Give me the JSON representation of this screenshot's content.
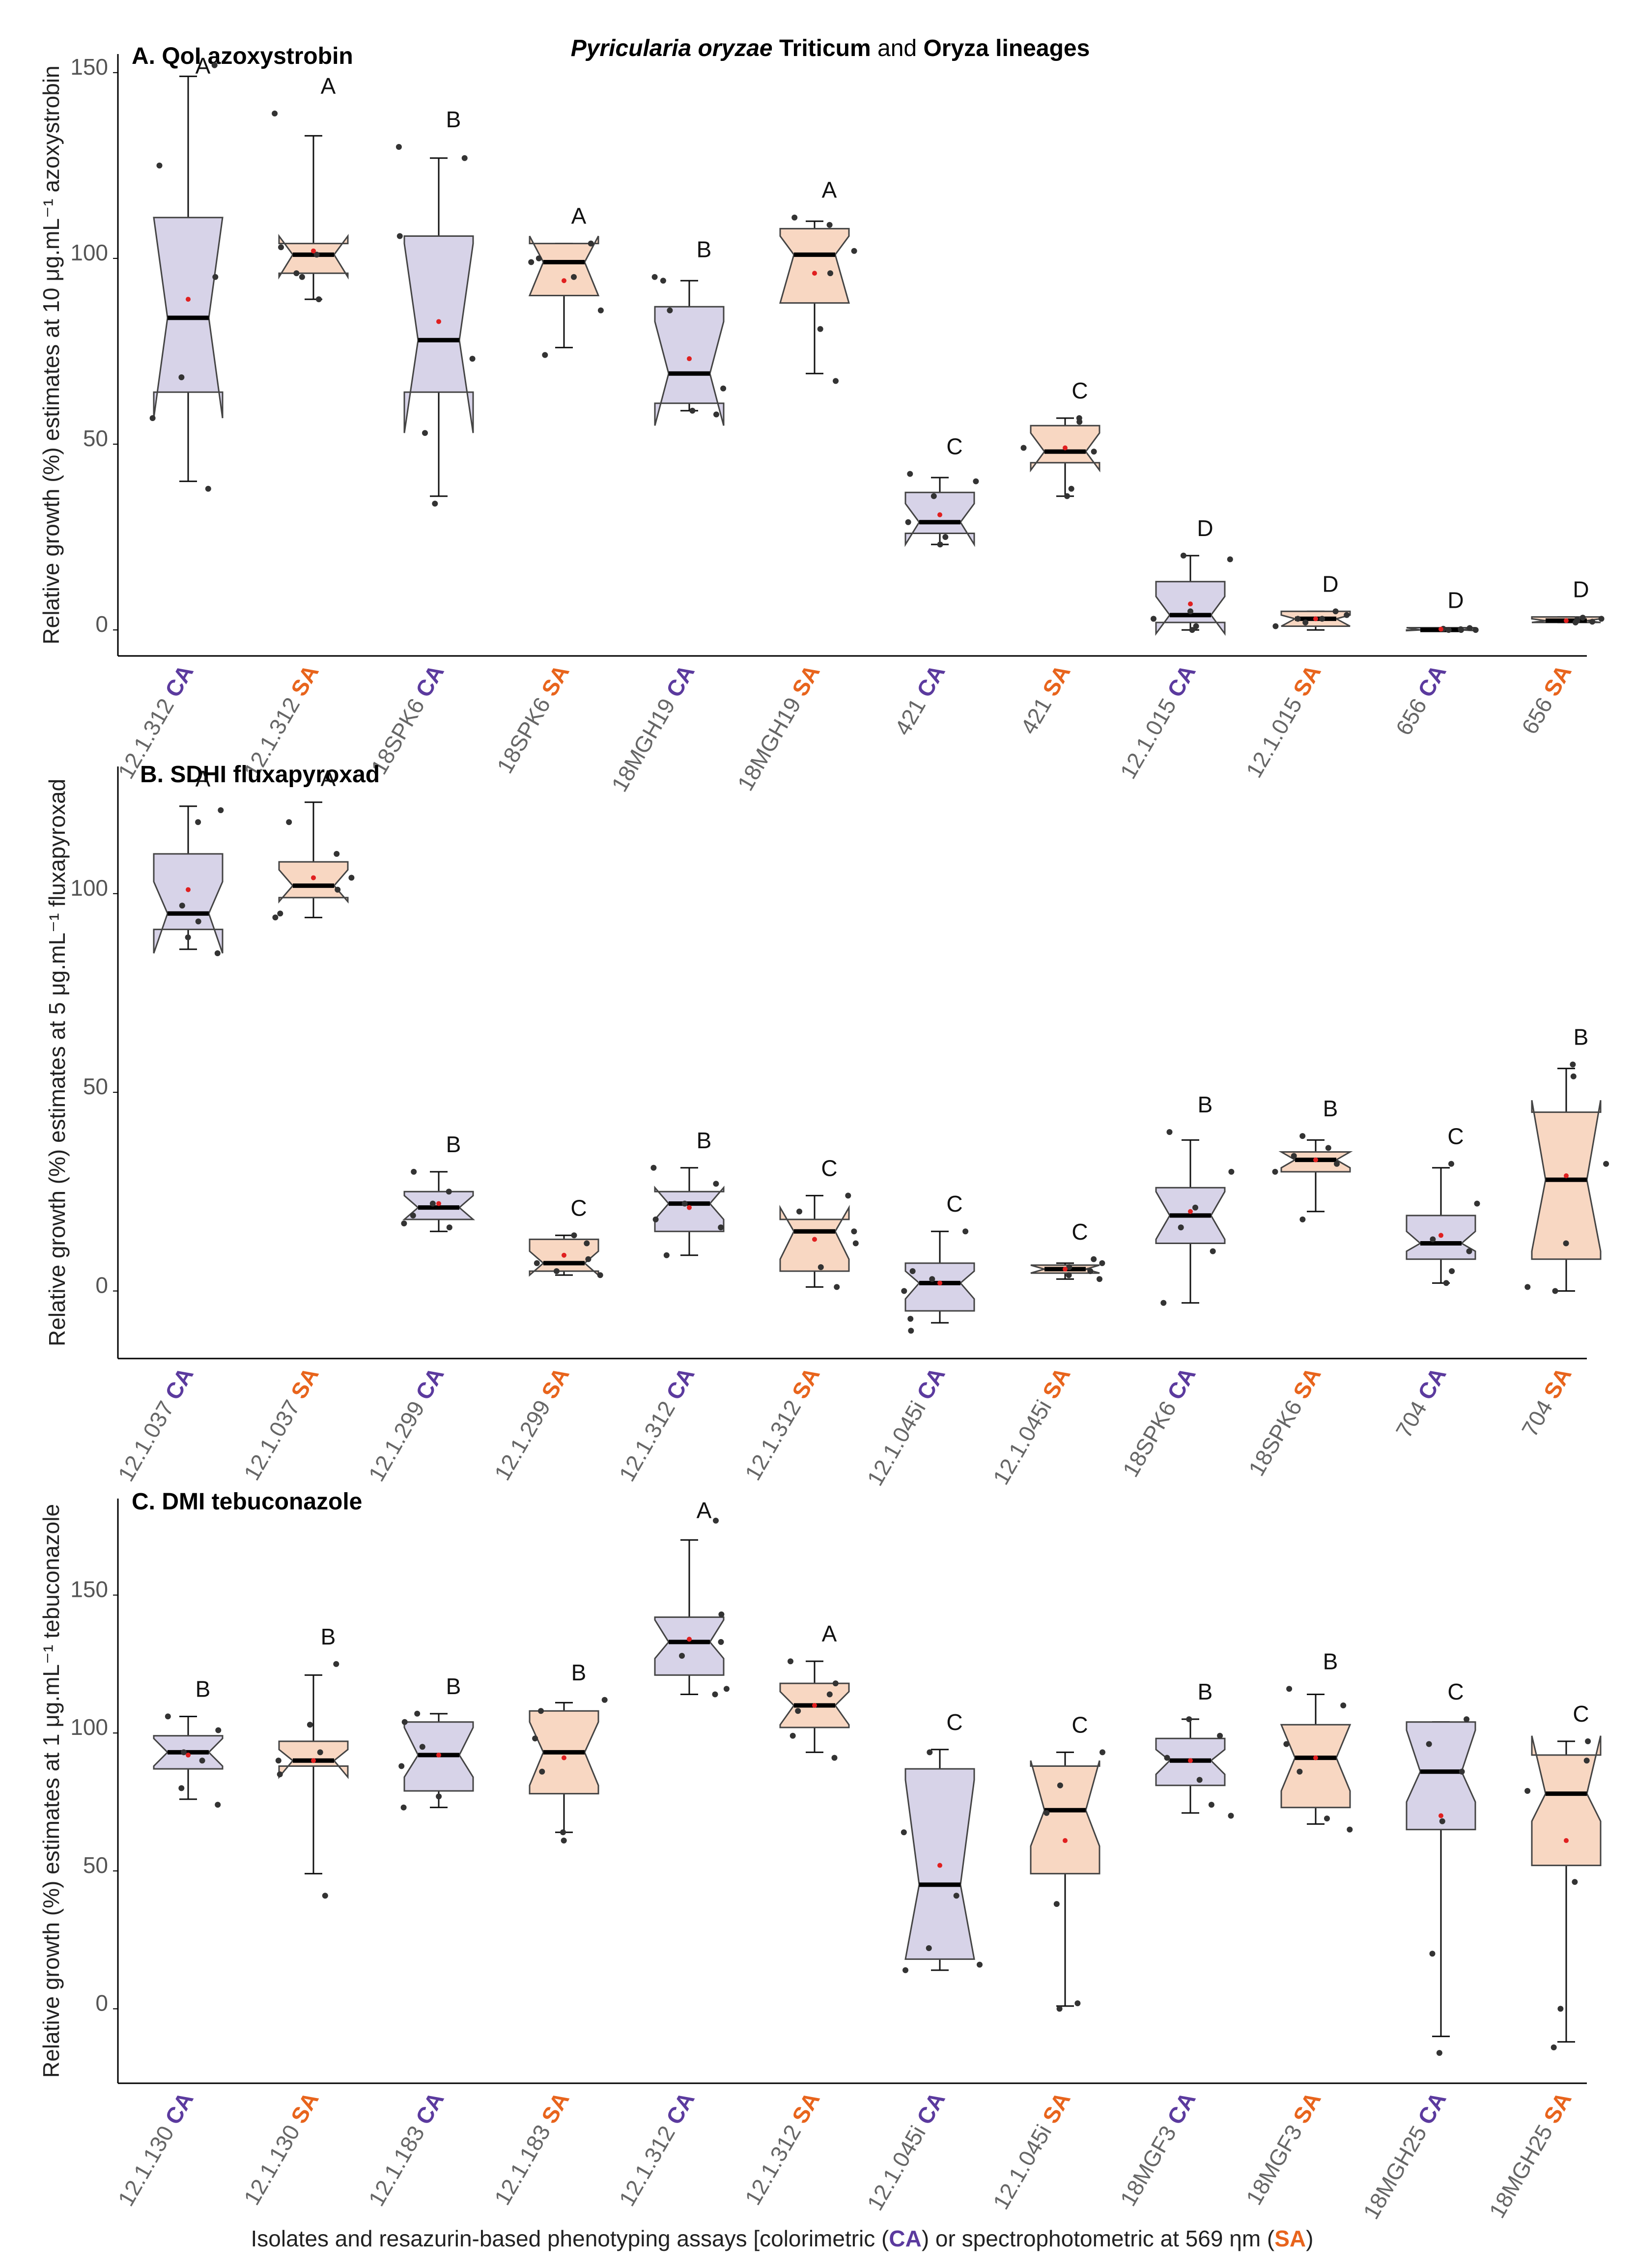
{
  "figure_title": {
    "part1": "Pyricularia oryzae",
    "part2": " Triticum",
    "part3": " and ",
    "part4": "Oryza",
    "part5": " lineages"
  },
  "colors": {
    "CA_fill": "#d7d3e8",
    "CA_text": "#5b3a9e",
    "SA_fill": "#f8d7c2",
    "SA_text": "#e8641c",
    "box_stroke": "#444444",
    "median": "#000000",
    "mean": "#e02020",
    "point": "#333333"
  },
  "footer": {
    "p1": "Isolates and resazurin-based phenotyping assays [colorimetric (",
    "ca": "CA",
    "p2": ") or spectrophotometric at 569 ηm (",
    "sa": "SA",
    "p3": ")"
  },
  "chart_data": [
    {
      "type": "boxplot",
      "title": "A. QoI azoxystrobin",
      "ylabel": "Relative growth (%) estimates at 10 μg.mL⁻¹ azoxystrobin",
      "ylim": [
        -7,
        155
      ],
      "yticks": [
        0,
        50,
        100,
        150
      ],
      "groups": [
        {
          "isolate": "12.1.312",
          "assay": "CA",
          "letter": "A",
          "q1": 64,
          "median": 84,
          "q3": 111,
          "wlo": 40,
          "whi": 149,
          "mean": 89,
          "nlo": 57,
          "nhi": 111,
          "points": [
            38,
            57,
            68,
            95,
            125,
            152
          ]
        },
        {
          "isolate": "12.1.312",
          "assay": "SA",
          "letter": "A",
          "q1": 96,
          "median": 101,
          "q3": 104,
          "wlo": 89,
          "whi": 133,
          "mean": 102,
          "nlo": 95,
          "nhi": 106,
          "points": [
            89,
            95,
            96,
            101,
            103,
            139
          ]
        },
        {
          "isolate": "18SPK6",
          "assay": "CA",
          "letter": "B",
          "q1": 64,
          "median": 78,
          "q3": 106,
          "wlo": 36,
          "whi": 127,
          "mean": 83,
          "nlo": 53,
          "nhi": 104,
          "points": [
            34,
            53,
            73,
            106,
            127,
            130
          ]
        },
        {
          "isolate": "18SPK6",
          "assay": "SA",
          "letter": "A",
          "q1": 90,
          "median": 99,
          "q3": 104,
          "wlo": 76,
          "whi": 104,
          "mean": 94,
          "nlo": 90,
          "nhi": 106,
          "points": [
            74,
            86,
            95,
            99,
            100,
            104
          ]
        },
        {
          "isolate": "18MGH19",
          "assay": "CA",
          "letter": "B",
          "q1": 61,
          "median": 69,
          "q3": 87,
          "wlo": 59,
          "whi": 94,
          "mean": 73,
          "nlo": 55,
          "nhi": 83,
          "points": [
            58,
            59,
            65,
            86,
            94,
            95
          ]
        },
        {
          "isolate": "18MGH19",
          "assay": "SA",
          "letter": "A",
          "q1": 88,
          "median": 101,
          "q3": 108,
          "wlo": 69,
          "whi": 110,
          "mean": 96,
          "nlo": 88,
          "nhi": 106,
          "points": [
            67,
            81,
            96,
            102,
            109,
            111
          ]
        },
        {
          "isolate": "421",
          "assay": "CA",
          "letter": "C",
          "q1": 26,
          "median": 29,
          "q3": 37,
          "wlo": 23,
          "whi": 41,
          "mean": 31,
          "nlo": 23,
          "nhi": 34,
          "points": [
            23,
            25,
            29,
            36,
            40,
            42
          ]
        },
        {
          "isolate": "421",
          "assay": "SA",
          "letter": "C",
          "q1": 45,
          "median": 48,
          "q3": 55,
          "wlo": 36,
          "whi": 57,
          "mean": 49,
          "nlo": 43,
          "nhi": 53,
          "points": [
            36,
            38,
            48,
            49,
            56,
            57
          ]
        },
        {
          "isolate": "12.1.015",
          "assay": "CA",
          "letter": "D",
          "q1": 2,
          "median": 4,
          "q3": 13,
          "wlo": 0,
          "whi": 20,
          "mean": 7,
          "nlo": -1,
          "nhi": 9,
          "points": [
            0,
            1,
            3,
            5,
            19,
            20
          ]
        },
        {
          "isolate": "12.1.015",
          "assay": "SA",
          "letter": "D",
          "q1": 1,
          "median": 3,
          "q3": 5,
          "wlo": 0,
          "whi": 5,
          "mean": 3,
          "nlo": 1,
          "nhi": 4,
          "points": [
            1,
            2,
            3,
            3,
            4,
            5
          ]
        },
        {
          "isolate": "656",
          "assay": "CA",
          "letter": "D",
          "q1": 0,
          "median": 0,
          "q3": 0.6,
          "wlo": 0,
          "whi": 0.6,
          "mean": 0.2,
          "nlo": -0.2,
          "nhi": 0.6,
          "points": [
            0,
            0,
            0,
            0.2,
            0.3,
            0.5
          ]
        },
        {
          "isolate": "656",
          "assay": "SA",
          "letter": "D",
          "q1": 2,
          "median": 2.5,
          "q3": 3.5,
          "wlo": 2,
          "whi": 3.5,
          "mean": 2.5,
          "nlo": 2,
          "nhi": 3,
          "points": [
            2,
            2.2,
            2.5,
            2.8,
            3,
            3.3
          ]
        }
      ]
    },
    {
      "type": "boxplot",
      "title": "B. SDHI fluxapyroxad",
      "ylabel": "Relative growth (%) estimates at 5 μg.mL⁻¹ fluxapyroxad",
      "ylim": [
        -17,
        132
      ],
      "yticks": [
        0,
        50,
        100
      ],
      "groups": [
        {
          "isolate": "12.1.037",
          "assay": "CA",
          "letter": "A",
          "q1": 91,
          "median": 95,
          "q3": 110,
          "wlo": 86,
          "whi": 122,
          "mean": 101,
          "nlo": 85,
          "nhi": 103,
          "points": [
            85,
            89,
            93,
            97,
            118,
            121
          ]
        },
        {
          "isolate": "12.1.037",
          "assay": "SA",
          "letter": "A",
          "q1": 99,
          "median": 102,
          "q3": 108,
          "wlo": 94,
          "whi": 123,
          "mean": 104,
          "nlo": 98,
          "nhi": 106,
          "points": [
            94,
            95,
            101,
            104,
            110,
            118
          ]
        },
        {
          "isolate": "12.1.299",
          "assay": "CA",
          "letter": "B",
          "q1": 18,
          "median": 21,
          "q3": 25,
          "wlo": 15,
          "whi": 30,
          "mean": 22,
          "nlo": 18,
          "nhi": 24,
          "points": [
            16,
            17,
            19,
            22,
            25,
            30
          ]
        },
        {
          "isolate": "12.1.299",
          "assay": "SA",
          "letter": "C",
          "q1": 5,
          "median": 7,
          "q3": 13,
          "wlo": 4,
          "whi": 14,
          "mean": 9,
          "nlo": 4,
          "nhi": 10,
          "points": [
            4,
            5,
            7,
            8,
            12,
            14
          ]
        },
        {
          "isolate": "12.1.312",
          "assay": "CA",
          "letter": "B",
          "q1": 15,
          "median": 22,
          "q3": 25,
          "wlo": 9,
          "whi": 31,
          "mean": 21,
          "nlo": 18,
          "nhi": 26,
          "points": [
            9,
            16,
            18,
            22,
            27,
            31
          ]
        },
        {
          "isolate": "12.1.312",
          "assay": "SA",
          "letter": "C",
          "q1": 5,
          "median": 15,
          "q3": 18,
          "wlo": 1,
          "whi": 24,
          "mean": 13,
          "nlo": 8,
          "nhi": 21,
          "points": [
            1,
            6,
            12,
            15,
            20,
            24
          ]
        },
        {
          "isolate": "12.1.045i",
          "assay": "CA",
          "letter": "C",
          "q1": -5,
          "median": 2,
          "q3": 7,
          "wlo": -8,
          "whi": 15,
          "mean": 2,
          "nlo": -2,
          "nhi": 5,
          "points": [
            -10,
            -7,
            0,
            3,
            5,
            15
          ]
        },
        {
          "isolate": "12.1.045i",
          "assay": "SA",
          "letter": "C",
          "q1": 4.5,
          "median": 5.5,
          "q3": 6.5,
          "wlo": 3,
          "whi": 7,
          "mean": 5.5,
          "nlo": 4.5,
          "nhi": 6.5,
          "points": [
            3,
            4,
            5,
            6,
            7,
            8
          ]
        },
        {
          "isolate": "18SPK6",
          "assay": "CA",
          "letter": "B",
          "q1": 12,
          "median": 19,
          "q3": 26,
          "wlo": -3,
          "whi": 38,
          "mean": 20,
          "nlo": 13,
          "nhi": 25,
          "points": [
            -3,
            10,
            16,
            21,
            30,
            40
          ]
        },
        {
          "isolate": "18SPK6",
          "assay": "SA",
          "letter": "B",
          "q1": 30,
          "median": 33,
          "q3": 35,
          "wlo": 20,
          "whi": 38,
          "mean": 33,
          "nlo": 31,
          "nhi": 35,
          "points": [
            18,
            30,
            32,
            34,
            36,
            39
          ]
        },
        {
          "isolate": "704",
          "assay": "CA",
          "letter": "C",
          "q1": 8,
          "median": 12,
          "q3": 19,
          "wlo": 2,
          "whi": 31,
          "mean": 14,
          "nlo": 10,
          "nhi": 15,
          "points": [
            2,
            5,
            10,
            13,
            22,
            32
          ]
        },
        {
          "isolate": "704",
          "assay": "SA",
          "letter": "B",
          "q1": 8,
          "median": 28,
          "q3": 45,
          "wlo": 0,
          "whi": 56,
          "mean": 29,
          "nlo": 10,
          "nhi": 48,
          "points": [
            0,
            1,
            12,
            32,
            54,
            57
          ]
        }
      ]
    },
    {
      "type": "boxplot",
      "title": "C. DMI tebuconazole",
      "ylabel": "Relative growth (%) estimates at 1 μg.mL⁻¹ tebuconazole",
      "ylim": [
        -27,
        185
      ],
      "yticks": [
        0,
        50,
        100,
        150
      ],
      "groups": [
        {
          "isolate": "12.1.130",
          "assay": "CA",
          "letter": "B",
          "q1": 87,
          "median": 93,
          "q3": 99,
          "wlo": 76,
          "whi": 106,
          "mean": 92,
          "nlo": 88,
          "nhi": 98,
          "points": [
            74,
            80,
            90,
            93,
            101,
            106
          ]
        },
        {
          "isolate": "12.1.130",
          "assay": "SA",
          "letter": "B",
          "q1": 88,
          "median": 90,
          "q3": 97,
          "wlo": 49,
          "whi": 121,
          "mean": 90,
          "nlo": 84,
          "nhi": 94,
          "points": [
            41,
            85,
            90,
            93,
            103,
            125
          ]
        },
        {
          "isolate": "12.1.183",
          "assay": "CA",
          "letter": "B",
          "q1": 79,
          "median": 92,
          "q3": 104,
          "wlo": 73,
          "whi": 107,
          "mean": 92,
          "nlo": 84,
          "nhi": 102,
          "points": [
            73,
            77,
            88,
            95,
            104,
            107
          ]
        },
        {
          "isolate": "12.1.183",
          "assay": "SA",
          "letter": "B",
          "q1": 78,
          "median": 93,
          "q3": 108,
          "wlo": 64,
          "whi": 111,
          "mean": 91,
          "nlo": 81,
          "nhi": 104,
          "points": [
            61,
            64,
            86,
            98,
            108,
            112
          ]
        },
        {
          "isolate": "12.1.312",
          "assay": "CA",
          "letter": "A",
          "q1": 121,
          "median": 133,
          "q3": 142,
          "wlo": 114,
          "whi": 170,
          "mean": 134,
          "nlo": 127,
          "nhi": 141,
          "points": [
            114,
            116,
            128,
            133,
            143,
            177
          ]
        },
        {
          "isolate": "12.1.312",
          "assay": "SA",
          "letter": "A",
          "q1": 102,
          "median": 110,
          "q3": 118,
          "wlo": 93,
          "whi": 126,
          "mean": 110,
          "nlo": 103,
          "nhi": 115,
          "points": [
            91,
            99,
            108,
            114,
            118,
            126
          ]
        },
        {
          "isolate": "12.1.045i",
          "assay": "CA",
          "letter": "C",
          "q1": 18,
          "median": 45,
          "q3": 87,
          "wlo": 14,
          "whi": 94,
          "mean": 52,
          "nlo": 18,
          "nhi": 83,
          "points": [
            14,
            16,
            22,
            41,
            64,
            93
          ]
        },
        {
          "isolate": "12.1.045i",
          "assay": "SA",
          "letter": "C",
          "q1": 49,
          "median": 72,
          "q3": 88,
          "wlo": 1,
          "whi": 93,
          "mean": 61,
          "nlo": 59,
          "nhi": 90,
          "points": [
            0,
            2,
            38,
            71,
            81,
            93
          ]
        },
        {
          "isolate": "18MGF3",
          "assay": "CA",
          "letter": "B",
          "q1": 81,
          "median": 90,
          "q3": 98,
          "wlo": 71,
          "whi": 105,
          "mean": 90,
          "nlo": 85,
          "nhi": 94,
          "points": [
            70,
            74,
            83,
            91,
            99,
            105
          ]
        },
        {
          "isolate": "18MGF3",
          "assay": "SA",
          "letter": "B",
          "q1": 73,
          "median": 91,
          "q3": 103,
          "wlo": 67,
          "whi": 114,
          "mean": 91,
          "nlo": 79,
          "nhi": 103,
          "points": [
            65,
            69,
            86,
            96,
            110,
            116
          ]
        },
        {
          "isolate": "18MGH25",
          "assay": "CA",
          "letter": "C",
          "q1": 65,
          "median": 86,
          "q3": 104,
          "wlo": -10,
          "whi": 104,
          "mean": 70,
          "nlo": 75,
          "nhi": 101,
          "points": [
            -16,
            20,
            68,
            86,
            96,
            105
          ]
        },
        {
          "isolate": "18MGH25",
          "assay": "SA",
          "letter": "C",
          "q1": 52,
          "median": 78,
          "q3": 92,
          "wlo": -12,
          "whi": 97,
          "mean": 61,
          "nlo": 68,
          "nhi": 99,
          "points": [
            -14,
            0,
            46,
            79,
            90,
            97
          ]
        }
      ]
    }
  ]
}
